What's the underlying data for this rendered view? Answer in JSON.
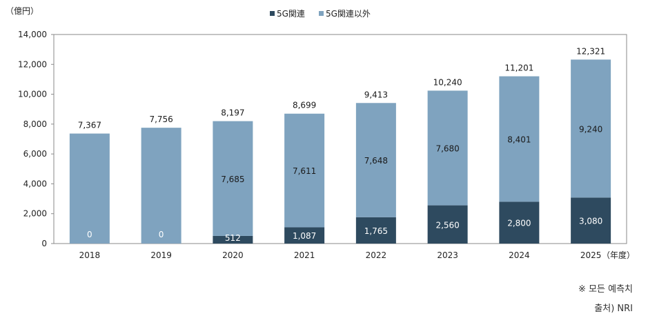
{
  "chart_data": {
    "type": "bar",
    "stacked": true,
    "yunit": "（億円）",
    "xunit": "（年度）",
    "categories": [
      "2018",
      "2019",
      "2020",
      "2021",
      "2022",
      "2023",
      "2024",
      "2025"
    ],
    "series": [
      {
        "name": "5G関連",
        "color": "#2e4a5f",
        "values": [
          0,
          0,
          512,
          1087,
          1765,
          2560,
          2800,
          3080
        ]
      },
      {
        "name": "5G関連以外",
        "color": "#7fa3bf",
        "values": [
          7367,
          7756,
          7685,
          7611,
          7648,
          7680,
          8401,
          9240
        ]
      }
    ],
    "totals": [
      7367,
      7756,
      8197,
      8699,
      9413,
      10240,
      11201,
      12321
    ],
    "ylim": [
      0,
      14000
    ],
    "yticks": [
      0,
      2000,
      4000,
      6000,
      8000,
      10000,
      12000,
      14000
    ],
    "legend_position": "top",
    "grid": false
  },
  "notes": {
    "line1": "※ 모든 예측치",
    "line2": "출처) NRI"
  }
}
